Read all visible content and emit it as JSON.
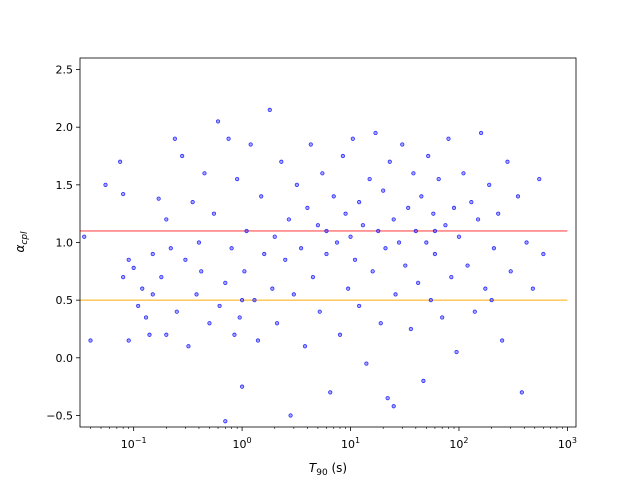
{
  "chart_data": {
    "type": "scatter",
    "xlabel_main": "T",
    "xlabel_sub": "90",
    "xlabel_unit": " (s)",
    "ylabel_main": "α",
    "ylabel_sub": "cpl",
    "xscale": "log",
    "xlim": [
      0.032,
      1200
    ],
    "ylim": [
      -0.6,
      2.6
    ],
    "x_ticks": [
      {
        "value": 0.1,
        "base": "10",
        "exp": "−1"
      },
      {
        "value": 1,
        "base": "10",
        "exp": "0"
      },
      {
        "value": 10,
        "base": "10",
        "exp": "1"
      },
      {
        "value": 100,
        "base": "10",
        "exp": "2"
      },
      {
        "value": 1000,
        "base": "10",
        "exp": "3"
      }
    ],
    "y_ticks": [
      {
        "value": -0.5,
        "label": "−0.5"
      },
      {
        "value": 0.0,
        "label": "0.0"
      },
      {
        "value": 0.5,
        "label": "0.5"
      },
      {
        "value": 1.0,
        "label": "1.0"
      },
      {
        "value": 1.5,
        "label": "1.5"
      },
      {
        "value": 2.0,
        "label": "2.0"
      },
      {
        "value": 2.5,
        "label": "2.5"
      }
    ],
    "hlines": [
      {
        "y": 1.1,
        "color": "#ff6e6e"
      },
      {
        "y": 0.5,
        "color": "#ffc34d"
      }
    ],
    "hline_x_range": [
      0.032,
      1000
    ],
    "point_color": "#0000ff",
    "points": [
      [
        0.035,
        1.05
      ],
      [
        0.04,
        0.15
      ],
      [
        0.055,
        1.5
      ],
      [
        0.075,
        1.7
      ],
      [
        0.08,
        1.42
      ],
      [
        0.08,
        0.7
      ],
      [
        0.09,
        0.85
      ],
      [
        0.09,
        0.15
      ],
      [
        0.1,
        0.78
      ],
      [
        0.11,
        0.45
      ],
      [
        0.12,
        0.6
      ],
      [
        0.13,
        0.35
      ],
      [
        0.14,
        0.2
      ],
      [
        0.15,
        0.9
      ],
      [
        0.15,
        0.55
      ],
      [
        0.17,
        1.38
      ],
      [
        0.18,
        0.7
      ],
      [
        0.2,
        1.2
      ],
      [
        0.2,
        0.2
      ],
      [
        0.22,
        0.95
      ],
      [
        0.24,
        1.9
      ],
      [
        0.25,
        0.4
      ],
      [
        0.28,
        1.75
      ],
      [
        0.3,
        0.85
      ],
      [
        0.32,
        0.1
      ],
      [
        0.35,
        1.35
      ],
      [
        0.38,
        0.55
      ],
      [
        0.4,
        1.0
      ],
      [
        0.42,
        0.75
      ],
      [
        0.45,
        1.6
      ],
      [
        0.5,
        0.3
      ],
      [
        0.55,
        1.25
      ],
      [
        0.6,
        2.05
      ],
      [
        0.62,
        0.45
      ],
      [
        0.7,
        0.65
      ],
      [
        0.75,
        1.9
      ],
      [
        0.8,
        0.95
      ],
      [
        0.85,
        0.2
      ],
      [
        0.9,
        1.55
      ],
      [
        0.95,
        0.35
      ],
      [
        1.0,
        -0.25
      ],
      [
        1.05,
        0.75
      ],
      [
        1.1,
        1.1
      ],
      [
        1.2,
        1.85
      ],
      [
        1.3,
        0.5
      ],
      [
        1.4,
        0.15
      ],
      [
        1.5,
        1.4
      ],
      [
        1.6,
        0.9
      ],
      [
        1.8,
        2.15
      ],
      [
        1.9,
        0.6
      ],
      [
        2.0,
        1.05
      ],
      [
        2.1,
        0.3
      ],
      [
        2.3,
        1.7
      ],
      [
        2.5,
        0.85
      ],
      [
        2.7,
        1.2
      ],
      [
        2.8,
        -0.5
      ],
      [
        3.0,
        0.55
      ],
      [
        3.2,
        1.5
      ],
      [
        3.5,
        0.95
      ],
      [
        3.8,
        0.1
      ],
      [
        4.0,
        1.3
      ],
      [
        4.3,
        1.85
      ],
      [
        4.5,
        0.7
      ],
      [
        5.0,
        1.15
      ],
      [
        5.2,
        0.4
      ],
      [
        5.5,
        1.6
      ],
      [
        6.0,
        0.9
      ],
      [
        6.5,
        -0.3
      ],
      [
        7.0,
        1.4
      ],
      [
        7.5,
        1.0
      ],
      [
        8.0,
        0.2
      ],
      [
        8.5,
        1.75
      ],
      [
        9.0,
        1.25
      ],
      [
        9.5,
        0.6
      ],
      [
        10,
        1.05
      ],
      [
        10.5,
        1.9
      ],
      [
        11,
        0.85
      ],
      [
        12,
        1.35
      ],
      [
        12,
        0.45
      ],
      [
        13,
        1.15
      ],
      [
        14,
        -0.05
      ],
      [
        15,
        1.55
      ],
      [
        16,
        0.75
      ],
      [
        17,
        1.95
      ],
      [
        18,
        1.1
      ],
      [
        19,
        0.3
      ],
      [
        20,
        1.45
      ],
      [
        21,
        0.95
      ],
      [
        22,
        -0.35
      ],
      [
        23,
        1.7
      ],
      [
        25,
        1.2
      ],
      [
        26,
        0.55
      ],
      [
        28,
        1.0
      ],
      [
        30,
        1.85
      ],
      [
        32,
        0.8
      ],
      [
        34,
        1.3
      ],
      [
        36,
        0.25
      ],
      [
        38,
        1.6
      ],
      [
        40,
        1.1
      ],
      [
        42,
        0.65
      ],
      [
        45,
        1.4
      ],
      [
        47,
        -0.2
      ],
      [
        50,
        1.0
      ],
      [
        52,
        1.75
      ],
      [
        55,
        0.5
      ],
      [
        58,
        1.25
      ],
      [
        60,
        0.9
      ],
      [
        65,
        1.55
      ],
      [
        70,
        0.35
      ],
      [
        75,
        1.15
      ],
      [
        80,
        1.9
      ],
      [
        85,
        0.7
      ],
      [
        90,
        1.3
      ],
      [
        95,
        0.05
      ],
      [
        100,
        1.05
      ],
      [
        110,
        1.6
      ],
      [
        120,
        0.8
      ],
      [
        130,
        1.35
      ],
      [
        140,
        0.4
      ],
      [
        150,
        1.2
      ],
      [
        160,
        1.95
      ],
      [
        175,
        0.6
      ],
      [
        190,
        1.5
      ],
      [
        210,
        0.95
      ],
      [
        230,
        1.25
      ],
      [
        250,
        0.15
      ],
      [
        280,
        1.7
      ],
      [
        300,
        0.75
      ],
      [
        350,
        1.4
      ],
      [
        380,
        -0.3
      ],
      [
        420,
        1.0
      ],
      [
        480,
        0.6
      ],
      [
        550,
        1.55
      ],
      [
        600,
        0.9
      ],
      [
        0.7,
        -0.55
      ],
      [
        25,
        -0.42
      ],
      [
        1.0,
        0.5
      ],
      [
        6.0,
        1.1
      ],
      [
        60,
        1.1
      ],
      [
        200,
        0.5
      ]
    ]
  }
}
